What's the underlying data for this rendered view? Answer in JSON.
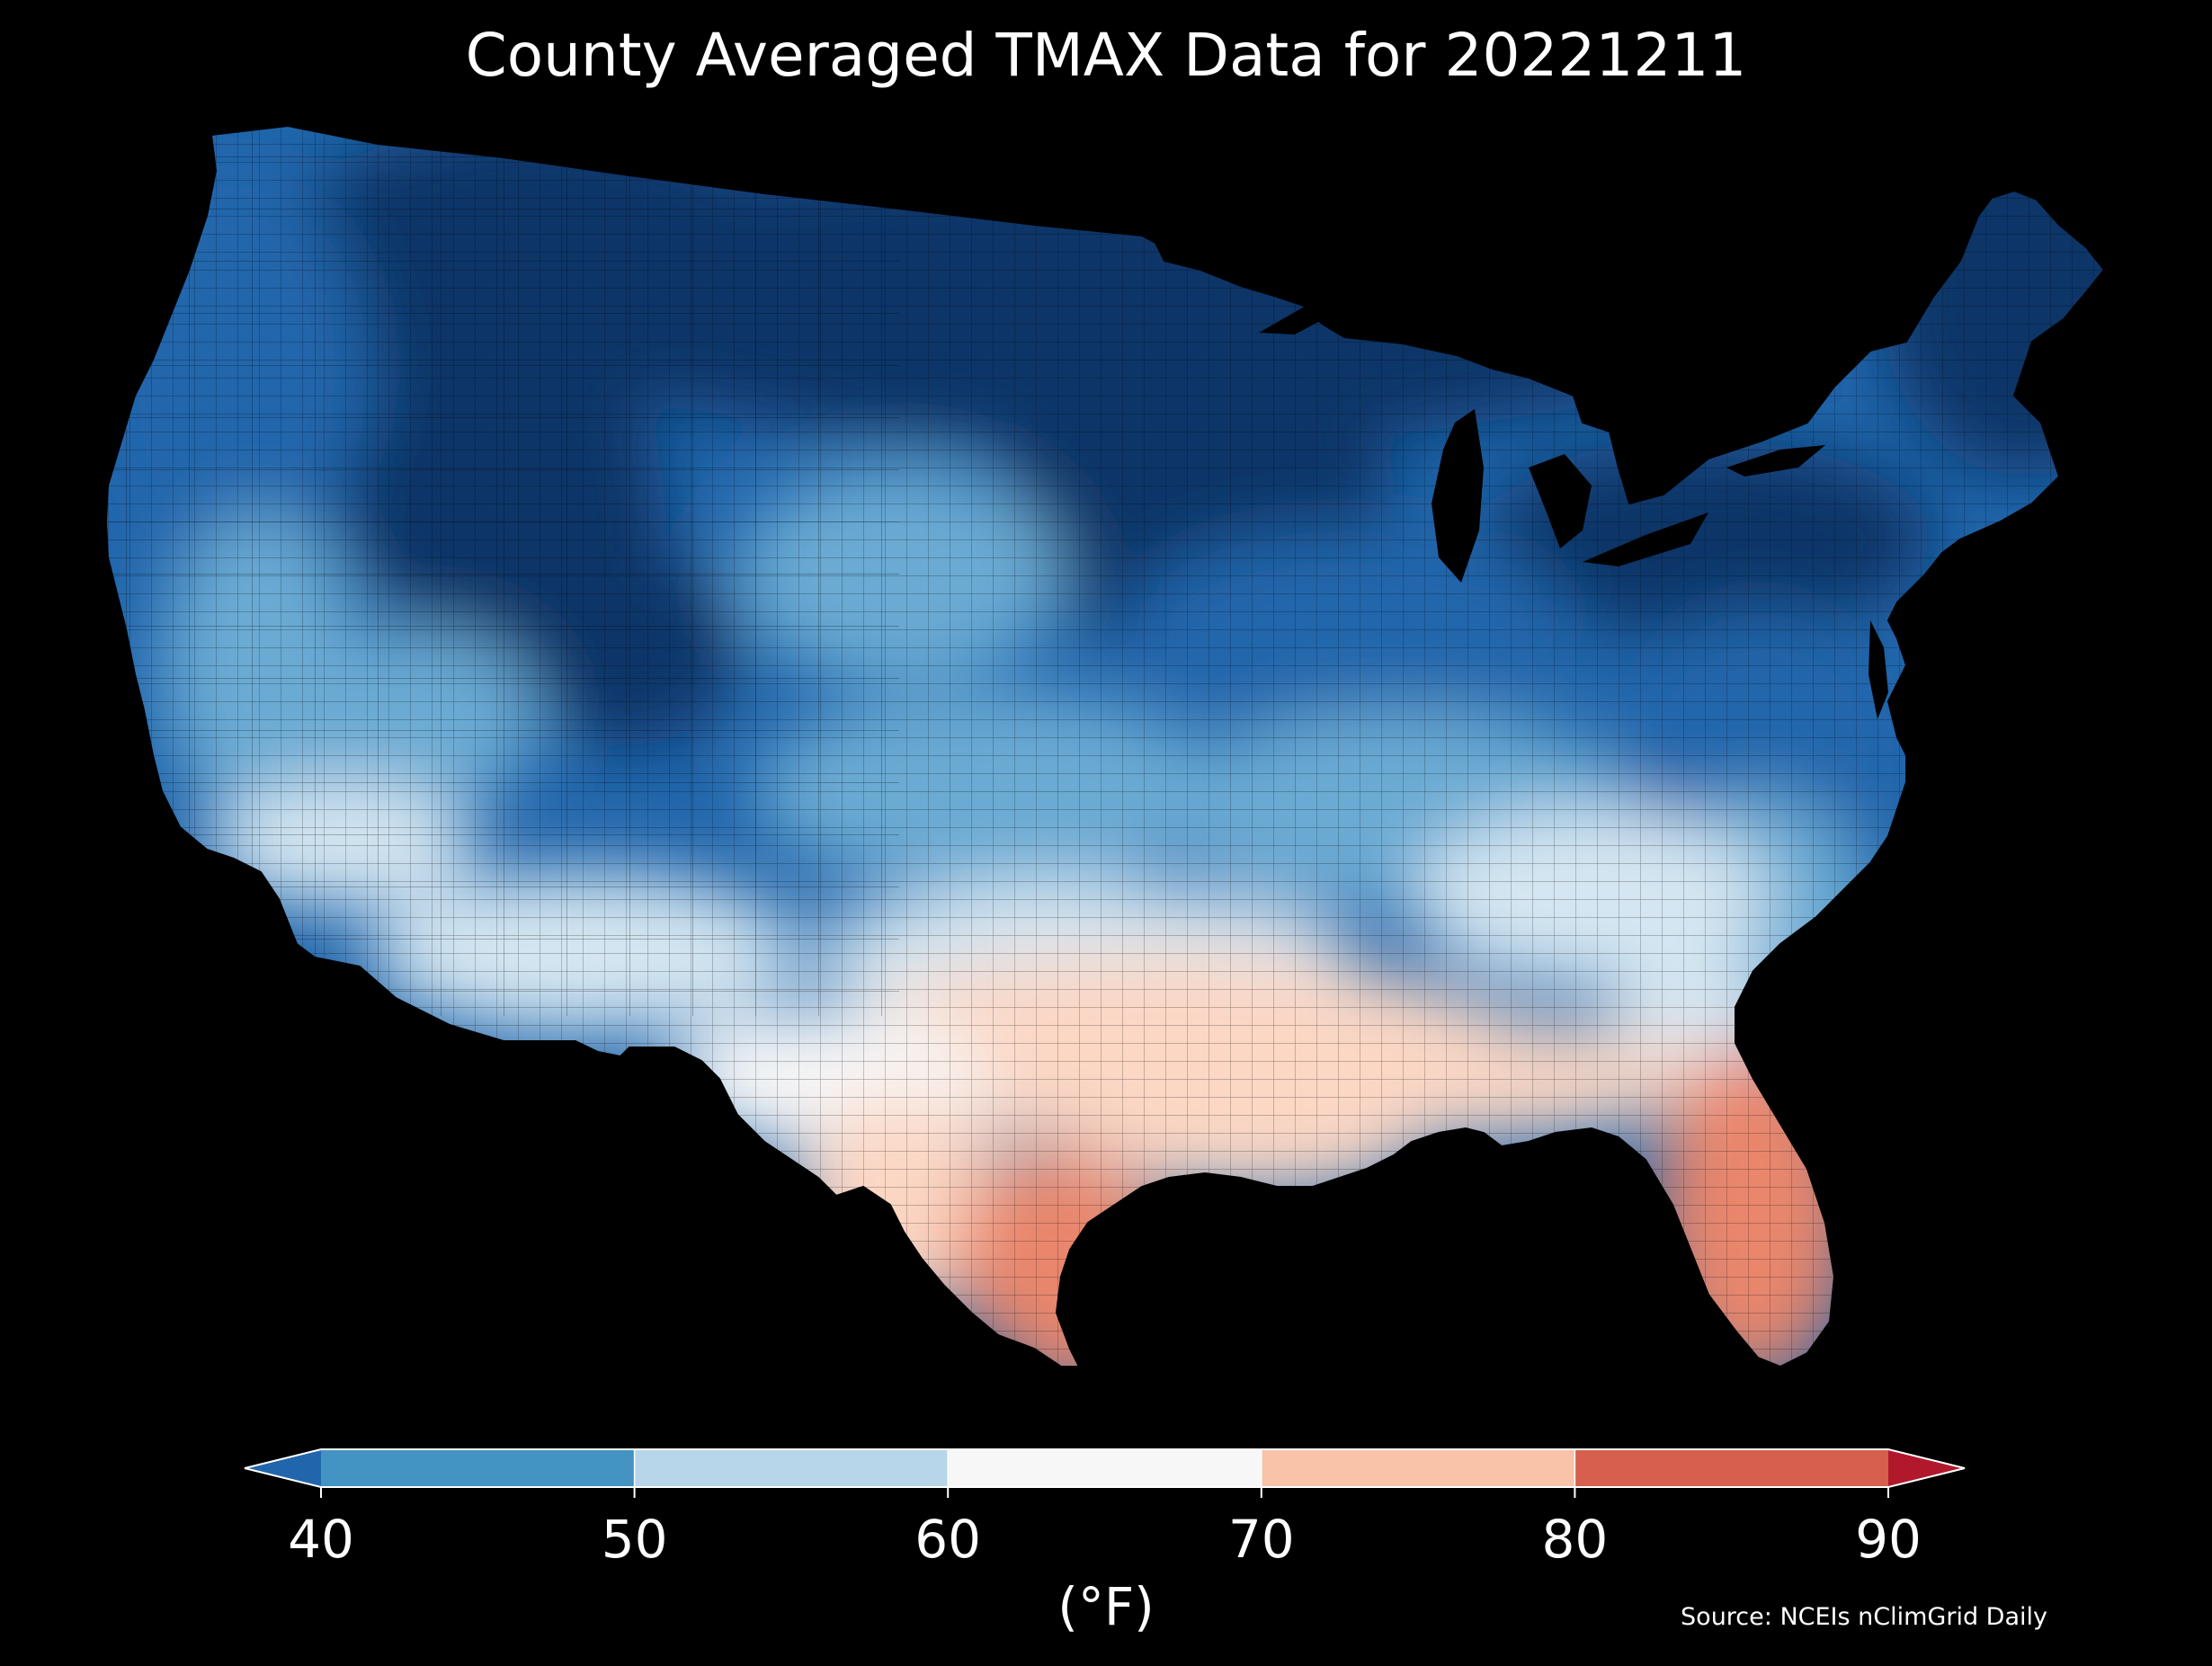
{
  "title": "County Averaged TMAX Data for 20221211",
  "source_note": "Source: NCEIs nClimGrid Daily",
  "colorbar": {
    "unit_label": "(°F)",
    "ticks": [
      "40",
      "50",
      "60",
      "70",
      "80",
      "90"
    ],
    "bins": [
      {
        "range": [
          40,
          50
        ],
        "color": "#4393c3"
      },
      {
        "range": [
          50,
          60
        ],
        "color": "#b7d6e9"
      },
      {
        "range": [
          60,
          70
        ],
        "color": "#f7f7f7"
      },
      {
        "range": [
          70,
          80
        ],
        "color": "#f9c3a9"
      },
      {
        "range": [
          80,
          90
        ],
        "color": "#d6604d"
      }
    ],
    "under_color": "#2166ac",
    "over_color": "#b2182b",
    "extend": "both"
  },
  "map": {
    "region": "Contiguous United States",
    "background_color": "#000000",
    "county_border_color": "#000000",
    "gradient_stops": [
      {
        "value": 30,
        "color": "#083468"
      },
      {
        "value": 40,
        "color": "#2166ac"
      },
      {
        "value": 50,
        "color": "#6aaad3"
      },
      {
        "value": 60,
        "color": "#d4e6f1"
      },
      {
        "value": 65,
        "color": "#f7f7f7"
      },
      {
        "value": 72,
        "color": "#fbd7c4"
      },
      {
        "value": 80,
        "color": "#e9866c"
      },
      {
        "value": 88,
        "color": "#c43c3a"
      }
    ]
  }
}
